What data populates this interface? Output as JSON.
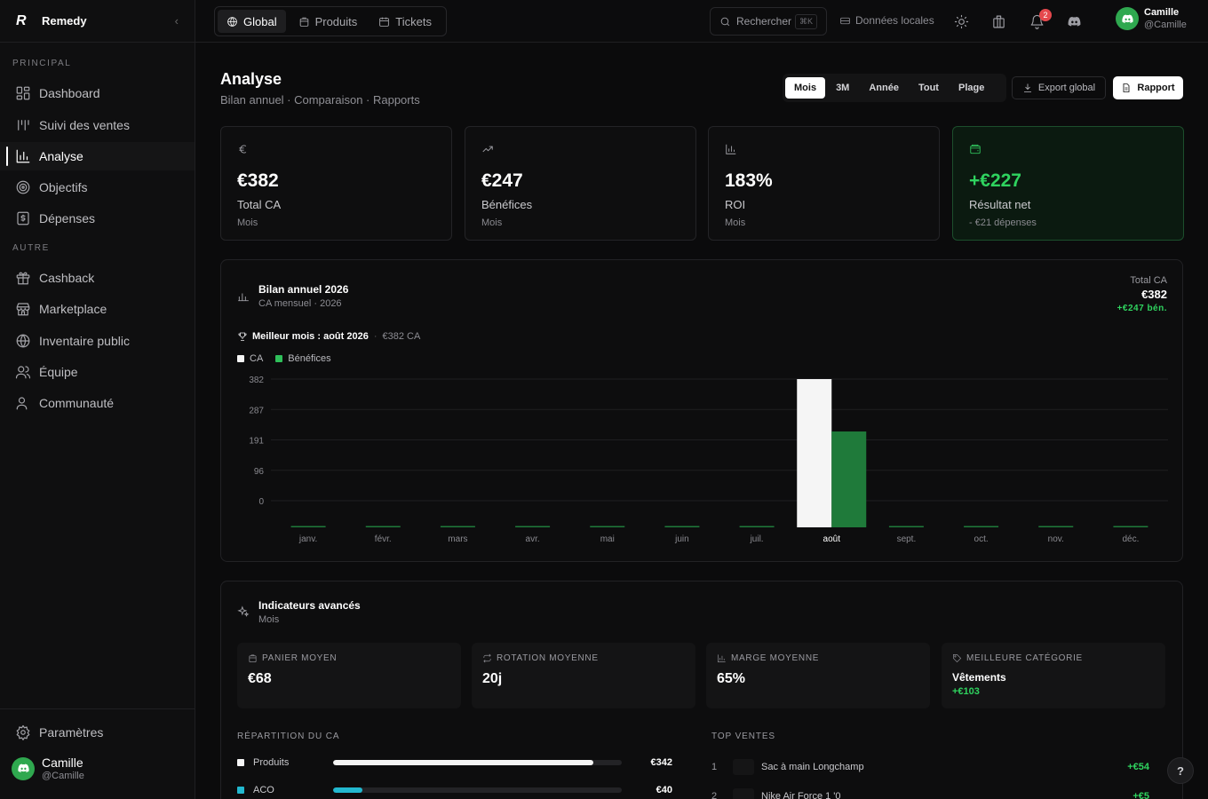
{
  "app": {
    "name": "Remedy",
    "logo_letter": "R"
  },
  "sidebar": {
    "section_principal": "PRINCIPAL",
    "section_autre": "AUTRE",
    "items": [
      {
        "label": "Dashboard",
        "icon": "layout-grid-icon"
      },
      {
        "label": "Suivi des ventes",
        "icon": "tally-icon"
      },
      {
        "label": "Analyse",
        "icon": "bar-chart-icon",
        "active": true
      },
      {
        "label": "Objectifs",
        "icon": "target-icon"
      },
      {
        "label": "Dépenses",
        "icon": "receipt-dollar-icon"
      }
    ],
    "other_items": [
      {
        "label": "Cashback",
        "icon": "gift-icon"
      },
      {
        "label": "Marketplace",
        "icon": "store-icon"
      },
      {
        "label": "Inventaire public",
        "icon": "globe-icon"
      },
      {
        "label": "Équipe",
        "icon": "users-icon"
      },
      {
        "label": "Communauté",
        "icon": "user-group-icon"
      }
    ],
    "settings_label": "Paramètres",
    "user": {
      "name": "Camille",
      "handle": "@Camille"
    }
  },
  "topbar": {
    "tabs": [
      {
        "label": "Global",
        "active": true
      },
      {
        "label": "Produits"
      },
      {
        "label": "Tickets"
      }
    ],
    "search_label": "Rechercher",
    "search_shortcut": "⌘K",
    "local_data_label": "Données locales",
    "notifications_count": "2",
    "user": {
      "name": "Camille",
      "handle": "@Camille"
    }
  },
  "page": {
    "title": "Analyse",
    "subtitle": "Bilan annuel · Comparaison · Rapports",
    "periods": [
      "Mois",
      "3M",
      "Année",
      "Tout",
      "Plage"
    ],
    "active_period": "Mois",
    "export_label": "Export global",
    "report_label": "Rapport"
  },
  "kpis": [
    {
      "value": "€382",
      "label": "Total CA",
      "sub": "Mois",
      "icon": "euro-icon"
    },
    {
      "value": "€247",
      "label": "Bénéfices",
      "sub": "Mois",
      "icon": "trending-up-icon"
    },
    {
      "value": "183%",
      "label": "ROI",
      "sub": "Mois",
      "icon": "bar-chart-icon"
    },
    {
      "value": "+€227",
      "label": "Résultat net",
      "sub": "- €21 dépenses",
      "icon": "wallet-icon",
      "positive": true
    }
  ],
  "annual": {
    "title": "Bilan annuel 2026",
    "subtitle": "CA mensuel · 2026",
    "total_label": "Total CA",
    "total_value": "€382",
    "total_benefit": "+€247 bén.",
    "best_month_label": "Meilleur mois : août 2026",
    "best_month_value": "€382 CA",
    "colors": {
      "ca": "#f5f5f5",
      "benefice": "#1f7a3a"
    }
  },
  "chart_data": {
    "type": "bar",
    "categories": [
      "janv.",
      "févr.",
      "mars",
      "avr.",
      "mai",
      "juin",
      "juil.",
      "août",
      "sept.",
      "oct.",
      "nov.",
      "déc."
    ],
    "series": [
      {
        "name": "CA",
        "values": [
          0,
          0,
          0,
          0,
          0,
          0,
          0,
          382,
          0,
          0,
          0,
          0
        ]
      },
      {
        "name": "Bénéfices",
        "values": [
          0,
          0,
          0,
          0,
          0,
          0,
          0,
          247,
          0,
          0,
          0,
          0
        ]
      }
    ],
    "yticks": [
      "382",
      "287",
      "191",
      "96",
      "0"
    ],
    "ylim": [
      0,
      382
    ],
    "highlight_category": "août",
    "legend": "top-left",
    "grid": true
  },
  "indicators": {
    "title": "Indicateurs avancés",
    "subtitle": "Mois",
    "cards": [
      {
        "label": "PANIER MOYEN",
        "value": "€68",
        "icon": "bag-icon"
      },
      {
        "label": "ROTATION MOYENNE",
        "value": "20j",
        "icon": "repeat-icon"
      },
      {
        "label": "MARGE MOYENNE",
        "value": "65%",
        "icon": "bar-chart-icon"
      },
      {
        "label": "MEILLEURE CATÉGORIE",
        "value": "Vêtements",
        "gain": "+€103",
        "icon": "tag-icon"
      }
    ],
    "repartition_title": "RÉPARTITION DU CA",
    "repartition": [
      {
        "name": "Produits",
        "value": "€342",
        "share": 0.9,
        "color": "#f5f5f5"
      },
      {
        "name": "ACO",
        "value": "€40",
        "share": 0.1,
        "color": "#22b8cf"
      }
    ],
    "top_title": "TOP VENTES",
    "top_sales": [
      {
        "rank": "1",
        "name": "Sac à main Longchamp",
        "profit": "+€54"
      },
      {
        "rank": "2",
        "name": "Nike Air Force 1 '0",
        "profit": "+€5"
      }
    ]
  },
  "help_label": "?"
}
